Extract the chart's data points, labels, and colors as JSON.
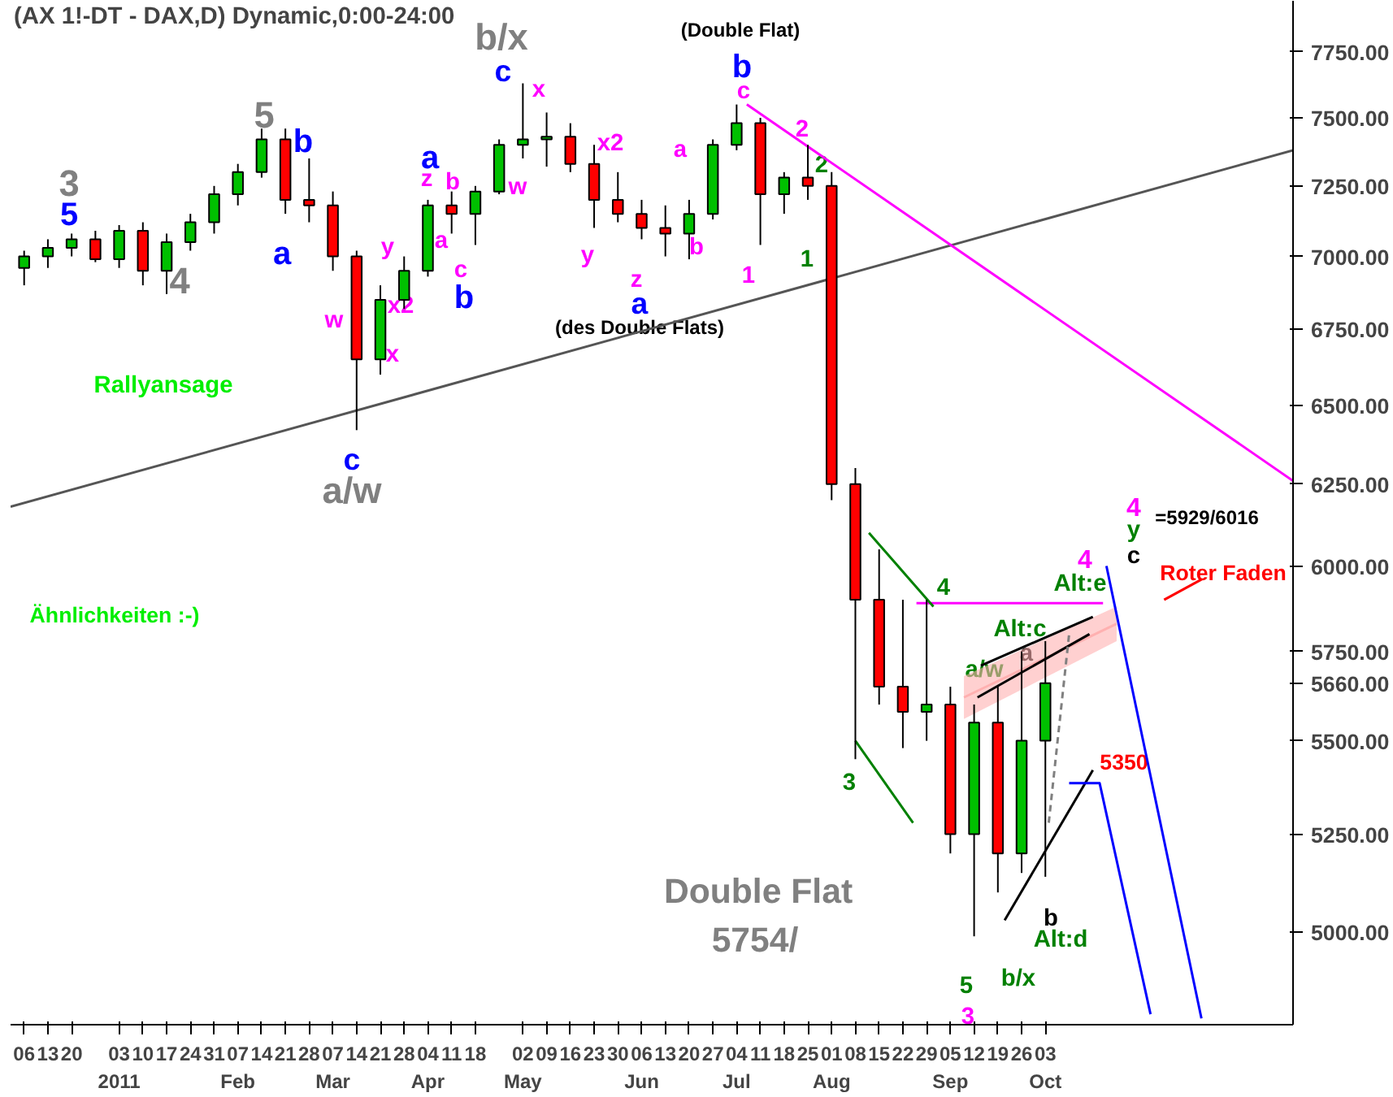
{
  "chart_data": {
    "type": "candlestick",
    "title": "(AX 1!-DT - DAX,D) Dynamic,0:00-24:00",
    "log": true,
    "x": [
      "2010-12-06",
      "2010-12-13",
      "2010-12-20",
      "2010-12-27",
      "2011-01-03",
      "2011-01-10",
      "2011-01-17",
      "2011-01-24",
      "2011-01-31",
      "2011-02-07",
      "2011-02-14",
      "2011-02-21",
      "2011-02-28",
      "2011-03-07",
      "2011-03-14",
      "2011-03-21",
      "2011-03-28",
      "2011-04-04",
      "2011-04-11",
      "2011-04-18",
      "2011-04-25",
      "2011-05-02",
      "2011-05-09",
      "2011-05-16",
      "2011-05-23",
      "2011-05-30",
      "2011-06-06",
      "2011-06-13",
      "2011-06-20",
      "2011-06-27",
      "2011-07-04",
      "2011-07-11",
      "2011-07-18",
      "2011-07-25",
      "2011-08-01",
      "2011-08-08",
      "2011-08-15",
      "2011-08-22",
      "2011-08-29",
      "2011-09-05",
      "2011-09-12",
      "2011-09-19",
      "2011-09-26",
      "2011-10-03"
    ],
    "ohlc": [
      [
        6960,
        7020,
        6900,
        7000
      ],
      [
        7000,
        7060,
        6960,
        7030
      ],
      [
        7030,
        7080,
        7000,
        7060
      ],
      [
        7060,
        7090,
        6980,
        6990
      ],
      [
        6990,
        7110,
        6960,
        7090
      ],
      [
        7090,
        7120,
        6900,
        6950
      ],
      [
        6950,
        7080,
        6870,
        7050
      ],
      [
        7050,
        7150,
        7020,
        7120
      ],
      [
        7120,
        7250,
        7080,
        7220
      ],
      [
        7220,
        7330,
        7180,
        7300
      ],
      [
        7300,
        7460,
        7280,
        7420
      ],
      [
        7420,
        7460,
        7150,
        7200
      ],
      [
        7200,
        7350,
        7120,
        7180
      ],
      [
        7180,
        7230,
        6950,
        7000
      ],
      [
        7000,
        7020,
        6420,
        6650
      ],
      [
        6650,
        6900,
        6600,
        6850
      ],
      [
        6850,
        7000,
        6820,
        6950
      ],
      [
        6950,
        7200,
        6930,
        7180
      ],
      [
        7180,
        7230,
        7080,
        7150
      ],
      [
        7150,
        7250,
        7040,
        7230
      ],
      [
        7230,
        7420,
        7220,
        7400
      ],
      [
        7400,
        7630,
        7350,
        7420
      ],
      [
        7420,
        7520,
        7320,
        7430
      ],
      [
        7430,
        7480,
        7300,
        7330
      ],
      [
        7330,
        7400,
        7100,
        7200
      ],
      [
        7200,
        7300,
        7120,
        7150
      ],
      [
        7150,
        7200,
        7060,
        7100
      ],
      [
        7100,
        7180,
        7000,
        7080
      ],
      [
        7080,
        7200,
        6990,
        7150
      ],
      [
        7150,
        7420,
        7130,
        7400
      ],
      [
        7400,
        7550,
        7380,
        7480
      ],
      [
        7480,
        7500,
        7040,
        7220
      ],
      [
        7220,
        7300,
        7150,
        7280
      ],
      [
        7280,
        7400,
        7200,
        7250
      ],
      [
        7250,
        7300,
        6200,
        6250
      ],
      [
        6250,
        6300,
        5450,
        5900
      ],
      [
        5900,
        6050,
        5600,
        5650
      ],
      [
        5650,
        5900,
        5480,
        5580
      ],
      [
        5580,
        5900,
        5500,
        5600
      ],
      [
        5600,
        5650,
        5200,
        5250
      ],
      [
        5250,
        5600,
        4990,
        5550
      ],
      [
        5550,
        5650,
        5100,
        5200
      ],
      [
        5200,
        5750,
        5150,
        5500
      ],
      [
        5500,
        5780,
        5140,
        5660
      ]
    ],
    "series": [
      {
        "type": "line",
        "color": "#555555",
        "x": [
          "2010-12-02",
          "2011-12-15"
        ],
        "values": [
          6180,
          7380
        ]
      },
      {
        "type": "line",
        "color": "#ff00ff",
        "x": [
          "2011-07-07",
          "2011-12-15"
        ],
        "values": [
          7550,
          6260
        ]
      },
      {
        "type": "line",
        "color": "#ff00ff",
        "x": [
          "2011-08-26",
          "2011-10-20"
        ],
        "values": [
          5890,
          5890
        ]
      },
      {
        "type": "line",
        "color": "#ffb0b0",
        "x": [
          "2011-09-09",
          "2011-10-24"
        ],
        "values": [
          5620,
          5830
        ],
        "lower": [
          5560,
          5780
        ],
        "upper": [
          5680,
          5880
        ]
      },
      {
        "type": "line",
        "color": "#008000",
        "x": [
          "2011-08-12",
          "2011-08-31"
        ],
        "values": [
          6100,
          5880
        ]
      },
      {
        "type": "line",
        "color": "#008000",
        "x": [
          "2011-08-08",
          "2011-08-25"
        ],
        "values": [
          5500,
          5280
        ]
      },
      {
        "type": "line",
        "color": "#000000",
        "x": [
          "2011-09-14",
          "2011-10-17"
        ],
        "values": [
          5710,
          5850
        ]
      },
      {
        "type": "line",
        "color": "#000000",
        "x": [
          "2011-09-13",
          "2011-10-16"
        ],
        "values": [
          5620,
          5800
        ]
      },
      {
        "type": "line",
        "color": "#000000",
        "x": [
          "2011-09-21",
          "2011-10-17"
        ],
        "values": [
          5030,
          5420
        ]
      },
      {
        "type": "line",
        "color": "#808080",
        "line_style": "dashed",
        "x": [
          "2011-10-04",
          "2011-10-10"
        ],
        "values": [
          5280,
          5800
        ]
      },
      {
        "type": "line",
        "color": "#0000ff",
        "x": [
          "2011-10-10",
          "2011-10-19",
          "2011-11-03"
        ],
        "values": [
          5385,
          5385,
          4800
        ]
      },
      {
        "type": "line",
        "color": "#0000ff",
        "x": [
          "2011-10-21",
          "2011-11-18"
        ],
        "values": [
          6000,
          4790
        ]
      },
      {
        "type": "line",
        "color": "#ff0000",
        "x": [
          "2011-11-18",
          "2011-11-07"
        ],
        "values": [
          5960,
          5900
        ]
      }
    ],
    "xlim": [
      "2010-12-02",
      "2011-12-15"
    ],
    "ylim": [
      4775,
      7950
    ],
    "yticks": [
      {
        "value": 5000,
        "label": "5000.00"
      },
      {
        "value": 5250,
        "label": "5250.00"
      },
      {
        "value": 5500,
        "label": "5500.00"
      },
      {
        "value": 5660,
        "label": "5660.00"
      },
      {
        "value": 5750,
        "label": "5750.00"
      },
      {
        "value": 6000,
        "label": "6000.00"
      },
      {
        "value": 6250,
        "label": "6250.00"
      },
      {
        "value": 6500,
        "label": "6500.00"
      },
      {
        "value": 6750,
        "label": "6750.00"
      },
      {
        "value": 7000,
        "label": "7000.00"
      },
      {
        "value": 7250,
        "label": "7250.00"
      },
      {
        "value": 7500,
        "label": "7500.00"
      },
      {
        "value": 7750,
        "label": "7750.00"
      }
    ],
    "xticks": [
      {
        "value": "2010-12-06",
        "label": "06"
      },
      {
        "value": "2010-12-13",
        "label": "13"
      },
      {
        "value": "2010-12-20",
        "label": "20"
      },
      {
        "value": "2011-01-03",
        "label": "03\n2011"
      },
      {
        "value": "2011-01-10",
        "label": "10"
      },
      {
        "value": "2011-01-17",
        "label": "17"
      },
      {
        "value": "2011-01-24",
        "label": "24"
      },
      {
        "value": "2011-01-31",
        "label": "31"
      },
      {
        "value": "2011-02-07",
        "label": "07\nFeb"
      },
      {
        "value": "2011-02-14",
        "label": "14"
      },
      {
        "value": "2011-02-21",
        "label": "21"
      },
      {
        "value": "2011-02-28",
        "label": "28"
      },
      {
        "value": "2011-03-07",
        "label": "07\nMar"
      },
      {
        "value": "2011-03-14",
        "label": "14"
      },
      {
        "value": "2011-03-21",
        "label": "21"
      },
      {
        "value": "2011-03-28",
        "label": "28"
      },
      {
        "value": "2011-04-04",
        "label": "04\nApr"
      },
      {
        "value": "2011-04-11",
        "label": "11"
      },
      {
        "value": "2011-04-18",
        "label": "18"
      },
      {
        "value": "2011-05-02",
        "label": "02\nMay"
      },
      {
        "value": "2011-05-09",
        "label": "09"
      },
      {
        "value": "2011-05-16",
        "label": "16"
      },
      {
        "value": "2011-05-23",
        "label": "23"
      },
      {
        "value": "2011-05-30",
        "label": "30"
      },
      {
        "value": "2011-06-06",
        "label": "06\nJun"
      },
      {
        "value": "2011-06-13",
        "label": "13"
      },
      {
        "value": "2011-06-20",
        "label": "20"
      },
      {
        "value": "2011-06-27",
        "label": "27"
      },
      {
        "value": "2011-07-04",
        "label": "04\nJul"
      },
      {
        "value": "2011-07-11",
        "label": "11"
      },
      {
        "value": "2011-07-18",
        "label": "18"
      },
      {
        "value": "2011-07-25",
        "label": "25"
      },
      {
        "value": "2011-08-01",
        "label": "01\nAug"
      },
      {
        "value": "2011-08-08",
        "label": "08"
      },
      {
        "value": "2011-08-15",
        "label": "15"
      },
      {
        "value": "2011-08-22",
        "label": "22"
      },
      {
        "value": "2011-08-29",
        "label": "29"
      },
      {
        "value": "2011-09-05",
        "label": "05\nSep"
      },
      {
        "value": "2011-09-12",
        "label": "12"
      },
      {
        "value": "2011-09-19",
        "label": "19"
      },
      {
        "value": "2011-09-26",
        "label": "26"
      },
      {
        "value": "2011-10-03",
        "label": "03\nOct"
      }
    ],
    "annotations": [
      "3",
      "5",
      "4",
      "Rallyansage",
      "5",
      "b",
      "a",
      "c",
      "a/w",
      "w",
      "x",
      "y",
      "x2",
      "a",
      "z",
      "a",
      "b",
      "c",
      "b",
      "b/x",
      "c",
      "x",
      "w",
      "y",
      "x2",
      "z",
      "a",
      "(des Double Flats)",
      "a",
      "b",
      "(Double Flat)",
      "b",
      "c",
      "1",
      "2",
      "2",
      "1",
      "4",
      "3",
      "Double Flat",
      "5754/",
      "5",
      "3",
      "b/x",
      "b",
      "Alt:d",
      "a/w",
      "a",
      "Alt:c",
      "Alt:e",
      "4",
      "4",
      "y",
      "c",
      "=5929/6016",
      "Roter Faden",
      "5350",
      "Ähnlichkeiten :-)"
    ]
  }
}
